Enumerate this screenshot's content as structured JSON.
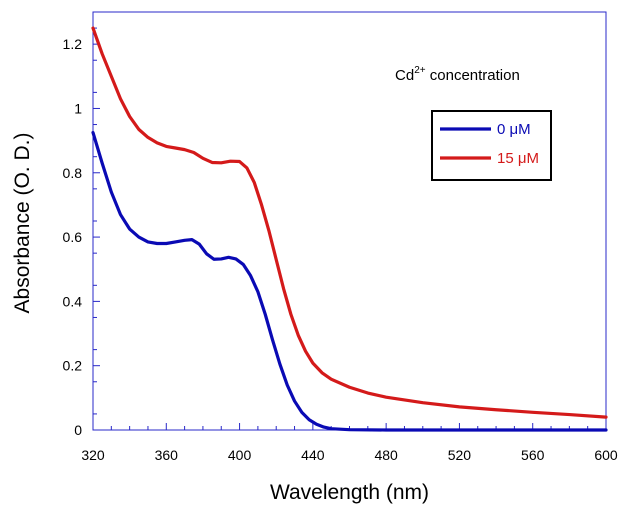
{
  "chart_data": {
    "type": "line",
    "xlabel": "Wavelength (nm)",
    "ylabel": "Absorbance (O. D.)",
    "xlim": [
      320,
      600
    ],
    "ylim": [
      0,
      1.3
    ],
    "xticks": [
      320,
      360,
      400,
      440,
      480,
      520,
      560,
      600
    ],
    "xtick_labels": [
      "320",
      "360",
      "400",
      "440",
      "480",
      "520",
      "560",
      "600"
    ],
    "yticks": [
      0,
      0.2,
      0.4,
      0.6,
      0.8,
      1,
      1.2
    ],
    "ytick_labels": [
      "0",
      "0.2",
      "0.4",
      "0.6",
      "0.8",
      "1",
      "1.2"
    ],
    "grid": false,
    "legend": {
      "title_main": "Cd",
      "title_sup": "2+",
      "title_rest": " concentration",
      "placement": "top-right"
    },
    "series": [
      {
        "name": "0 μM",
        "color": "#0a0ab4",
        "points": [
          [
            320,
            0.925
          ],
          [
            325,
            0.83
          ],
          [
            330,
            0.74
          ],
          [
            335,
            0.67
          ],
          [
            340,
            0.625
          ],
          [
            345,
            0.6
          ],
          [
            350,
            0.585
          ],
          [
            355,
            0.58
          ],
          [
            360,
            0.58
          ],
          [
            365,
            0.585
          ],
          [
            370,
            0.59
          ],
          [
            374,
            0.592
          ],
          [
            378,
            0.578
          ],
          [
            382,
            0.548
          ],
          [
            386,
            0.531
          ],
          [
            390,
            0.532
          ],
          [
            394,
            0.537
          ],
          [
            398,
            0.532
          ],
          [
            402,
            0.515
          ],
          [
            406,
            0.48
          ],
          [
            410,
            0.43
          ],
          [
            414,
            0.36
          ],
          [
            418,
            0.28
          ],
          [
            422,
            0.205
          ],
          [
            426,
            0.14
          ],
          [
            430,
            0.09
          ],
          [
            434,
            0.055
          ],
          [
            438,
            0.032
          ],
          [
            442,
            0.018
          ],
          [
            446,
            0.009
          ],
          [
            450,
            0.004
          ],
          [
            460,
            0.001
          ],
          [
            480,
            0
          ],
          [
            520,
            0
          ],
          [
            560,
            0
          ],
          [
            600,
            0
          ]
        ]
      },
      {
        "name": "15 μM",
        "color": "#d41a1a",
        "points": [
          [
            320,
            1.25
          ],
          [
            325,
            1.17
          ],
          [
            330,
            1.1
          ],
          [
            335,
            1.03
          ],
          [
            340,
            0.975
          ],
          [
            345,
            0.935
          ],
          [
            350,
            0.91
          ],
          [
            355,
            0.893
          ],
          [
            360,
            0.882
          ],
          [
            365,
            0.877
          ],
          [
            370,
            0.872
          ],
          [
            375,
            0.863
          ],
          [
            380,
            0.845
          ],
          [
            385,
            0.832
          ],
          [
            390,
            0.831
          ],
          [
            395,
            0.836
          ],
          [
            400,
            0.835
          ],
          [
            404,
            0.815
          ],
          [
            408,
            0.77
          ],
          [
            412,
            0.7
          ],
          [
            416,
            0.62
          ],
          [
            420,
            0.53
          ],
          [
            424,
            0.44
          ],
          [
            428,
            0.36
          ],
          [
            432,
            0.295
          ],
          [
            436,
            0.245
          ],
          [
            440,
            0.208
          ],
          [
            445,
            0.178
          ],
          [
            450,
            0.158
          ],
          [
            460,
            0.133
          ],
          [
            470,
            0.115
          ],
          [
            480,
            0.102
          ],
          [
            500,
            0.085
          ],
          [
            520,
            0.072
          ],
          [
            540,
            0.063
          ],
          [
            560,
            0.055
          ],
          [
            580,
            0.048
          ],
          [
            600,
            0.04
          ]
        ]
      }
    ]
  }
}
